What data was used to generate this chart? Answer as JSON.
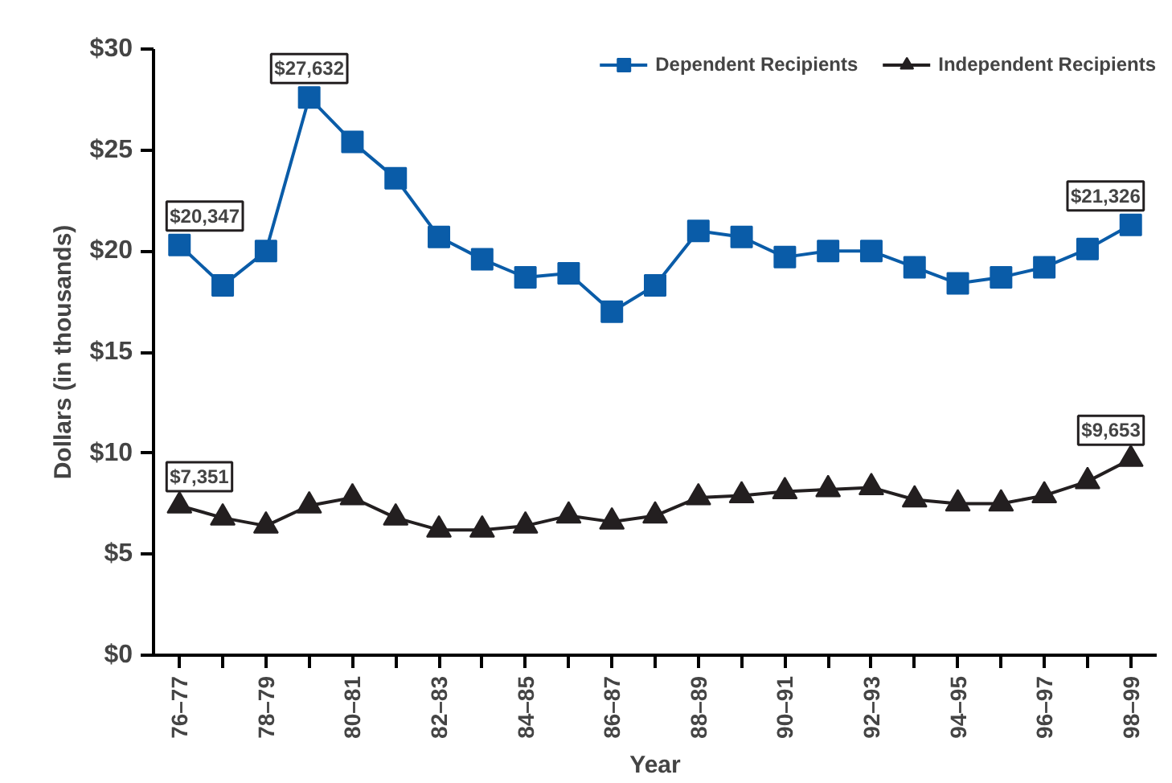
{
  "chart_data": {
    "type": "line",
    "xlabel": "Year",
    "ylabel": "Dollars (in thousands)",
    "categories": [
      "76–77",
      null,
      "78–79",
      null,
      "80–81",
      null,
      "82–83",
      null,
      "84–85",
      null,
      "86–87",
      null,
      "88–89",
      null,
      "90–91",
      null,
      "92–93",
      null,
      "94–95",
      null,
      "96–97",
      null,
      "98–99"
    ],
    "series": [
      {
        "name": "Dependent Recipients",
        "color": "#0a5ca8",
        "marker": "square",
        "values": [
          20.3,
          18.3,
          20.0,
          27.6,
          25.4,
          23.6,
          20.7,
          19.6,
          18.7,
          18.9,
          17.0,
          18.3,
          21.0,
          20.7,
          19.7,
          20.0,
          20.0,
          19.2,
          18.4,
          18.7,
          19.2,
          20.1,
          21.3
        ]
      },
      {
        "name": "Independent Recipients",
        "color": "#231f20",
        "marker": "triangle",
        "values": [
          7.4,
          6.8,
          6.4,
          7.4,
          7.8,
          6.8,
          6.2,
          6.2,
          6.4,
          6.9,
          6.6,
          6.9,
          7.8,
          7.9,
          8.1,
          8.2,
          8.3,
          7.7,
          7.5,
          7.5,
          7.9,
          8.6,
          9.7
        ]
      }
    ],
    "annotations": [
      {
        "text": "$20,347",
        "x": "76–77",
        "y": 20.3
      },
      {
        "text": "$27,632",
        "y": 27.6
      },
      {
        "text": "$21,326",
        "x": "98–99",
        "y": 21.3
      },
      {
        "text": "$7,351",
        "x": "76–77",
        "y": 7.4
      },
      {
        "text": "$9,653",
        "x": "98–99",
        "y": 9.7
      }
    ],
    "ylim": [
      0,
      30
    ],
    "yticks": [
      {
        "value": 0,
        "label": "$0"
      },
      {
        "value": 5,
        "label": "$5"
      },
      {
        "value": 10,
        "label": "$10"
      },
      {
        "value": 15,
        "label": "$15"
      },
      {
        "value": 20,
        "label": "$20"
      },
      {
        "value": 25,
        "label": "$25"
      },
      {
        "value": 30,
        "label": "$30"
      }
    ],
    "grid": false,
    "legend": "top right",
    "line_style": "solid"
  }
}
